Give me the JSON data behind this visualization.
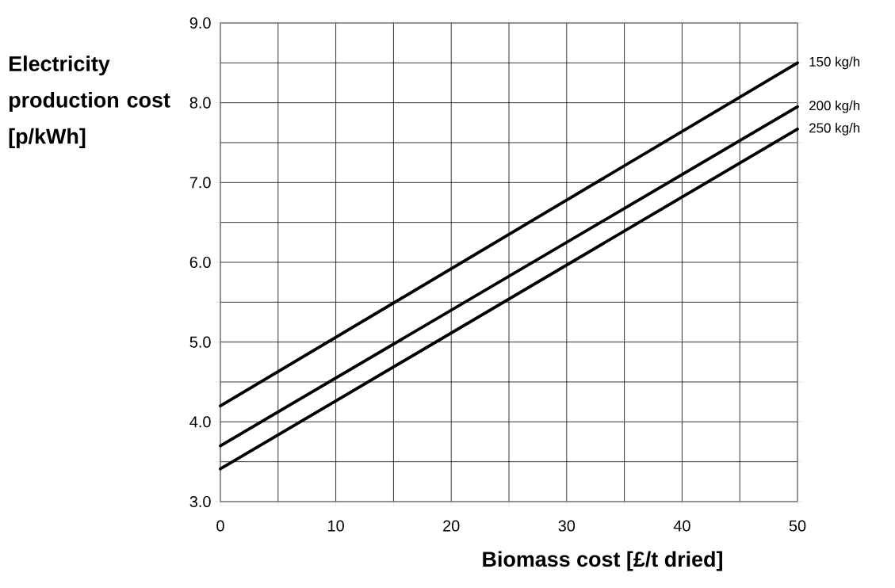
{
  "chart_data": {
    "type": "line",
    "xlabel": "Biomass cost [£/t dried]",
    "ylabel": "Electricity production cost [p/kWh]",
    "x": [
      0,
      50
    ],
    "series": [
      {
        "name": "150 kg/h",
        "color": "#000000",
        "values": [
          4.2,
          8.5
        ]
      },
      {
        "name": "200 kg/h",
        "color": "#000000",
        "values": [
          3.7,
          7.95
        ]
      },
      {
        "name": "250 kg/h",
        "color": "#000000",
        "values": [
          3.41,
          7.67
        ]
      }
    ],
    "xlim": [
      0,
      50
    ],
    "ylim": [
      3.0,
      9.0
    ],
    "xticks": [
      0,
      {
        "value": 5,
        "label": null
      },
      10,
      {
        "value": 15,
        "label": null
      },
      20,
      {
        "value": 25,
        "label": null
      },
      30,
      {
        "value": 35,
        "label": null
      },
      40,
      {
        "value": 45,
        "label": null
      },
      50
    ],
    "yticks": [
      {
        "value": 3,
        "label": "3.0"
      },
      {
        "value": 3.5,
        "label": null
      },
      {
        "value": 4,
        "label": "4.0"
      },
      {
        "value": 4.5,
        "label": null
      },
      {
        "value": 5,
        "label": "5.0"
      },
      {
        "value": 5.5,
        "label": null
      },
      {
        "value": 6,
        "label": "6.0"
      },
      {
        "value": 6.5,
        "label": null
      },
      {
        "value": 7,
        "label": "7.0"
      },
      {
        "value": 7.5,
        "label": null
      },
      {
        "value": 8,
        "label": "8.0"
      },
      {
        "value": 8.5,
        "label": null
      },
      {
        "value": 9,
        "label": "9.0"
      }
    ],
    "grid": true,
    "legend": false,
    "line_style": "solid",
    "marker": "none"
  }
}
